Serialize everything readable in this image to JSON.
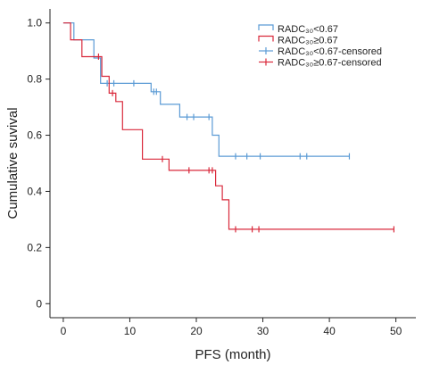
{
  "chart_data": {
    "type": "line",
    "subtype": "kaplan-meier-step",
    "title": "",
    "xlabel": "PFS (month)",
    "ylabel": "Cumulative suvival",
    "xlim": [
      -2,
      53
    ],
    "ylim": [
      -0.05,
      1.05
    ],
    "xticks": [
      0,
      10,
      20,
      30,
      40,
      50
    ],
    "xtick_labels": [
      "0",
      "10",
      "20",
      "30",
      "40",
      "50"
    ],
    "yticks": [
      0,
      0.2,
      0.4,
      0.6,
      0.8,
      1.0
    ],
    "ytick_labels": [
      "0",
      "0.2",
      "0.4",
      "0.6",
      "0.8",
      "1.0"
    ],
    "grid": false,
    "legend_position": "top-right",
    "series": [
      {
        "name": "RADC₃₀<0.67",
        "color": "#5b9bd5",
        "steps": [
          [
            0,
            1.0
          ],
          [
            1.6,
            1.0
          ],
          [
            1.6,
            0.94
          ],
          [
            4.6,
            0.94
          ],
          [
            4.6,
            0.875
          ],
          [
            5.6,
            0.875
          ],
          [
            5.6,
            0.785
          ],
          [
            13.2,
            0.785
          ],
          [
            13.2,
            0.755
          ],
          [
            14.6,
            0.755
          ],
          [
            14.6,
            0.71
          ],
          [
            17.5,
            0.71
          ],
          [
            17.5,
            0.665
          ],
          [
            22.4,
            0.665
          ],
          [
            22.4,
            0.6
          ],
          [
            23.4,
            0.6
          ],
          [
            23.4,
            0.525
          ],
          [
            43.0,
            0.525
          ]
        ],
        "censored": [
          [
            6.6,
            0.785
          ],
          [
            7.6,
            0.785
          ],
          [
            10.6,
            0.785
          ],
          [
            13.6,
            0.755
          ],
          [
            14.0,
            0.755
          ],
          [
            18.6,
            0.665
          ],
          [
            19.6,
            0.665
          ],
          [
            21.9,
            0.665
          ],
          [
            25.9,
            0.525
          ],
          [
            27.6,
            0.525
          ],
          [
            29.6,
            0.525
          ],
          [
            35.6,
            0.525
          ],
          [
            36.6,
            0.525
          ],
          [
            43.0,
            0.525
          ]
        ]
      },
      {
        "name": "RADC₃₀≥0.67",
        "color": "#d9293b",
        "steps": [
          [
            0,
            1.0
          ],
          [
            1.1,
            1.0
          ],
          [
            1.1,
            0.94
          ],
          [
            2.8,
            0.94
          ],
          [
            2.8,
            0.88
          ],
          [
            5.8,
            0.88
          ],
          [
            5.8,
            0.81
          ],
          [
            6.9,
            0.81
          ],
          [
            6.9,
            0.75
          ],
          [
            7.9,
            0.75
          ],
          [
            7.9,
            0.72
          ],
          [
            8.9,
            0.72
          ],
          [
            8.9,
            0.62
          ],
          [
            11.9,
            0.62
          ],
          [
            11.9,
            0.515
          ],
          [
            15.9,
            0.515
          ],
          [
            15.9,
            0.475
          ],
          [
            22.9,
            0.475
          ],
          [
            22.9,
            0.42
          ],
          [
            23.9,
            0.42
          ],
          [
            23.9,
            0.37
          ],
          [
            24.9,
            0.37
          ],
          [
            24.9,
            0.265
          ],
          [
            49.7,
            0.265
          ]
        ],
        "censored": [
          [
            5.3,
            0.88
          ],
          [
            7.4,
            0.75
          ],
          [
            14.9,
            0.515
          ],
          [
            18.9,
            0.475
          ],
          [
            21.9,
            0.475
          ],
          [
            22.4,
            0.475
          ],
          [
            25.9,
            0.265
          ],
          [
            28.4,
            0.265
          ],
          [
            29.4,
            0.265
          ],
          [
            49.7,
            0.265
          ]
        ]
      }
    ],
    "legend": [
      {
        "label": "RADC₃₀<0.67",
        "color": "#5b9bd5",
        "style": "step"
      },
      {
        "label": "RADC₃₀≥0.67",
        "color": "#d9293b",
        "style": "step"
      },
      {
        "label": "RADC₃₀<0.67-censored",
        "color": "#5b9bd5",
        "style": "censored"
      },
      {
        "label": "RADC₃₀≥0.67-censored",
        "color": "#d9293b",
        "style": "censored"
      }
    ]
  }
}
